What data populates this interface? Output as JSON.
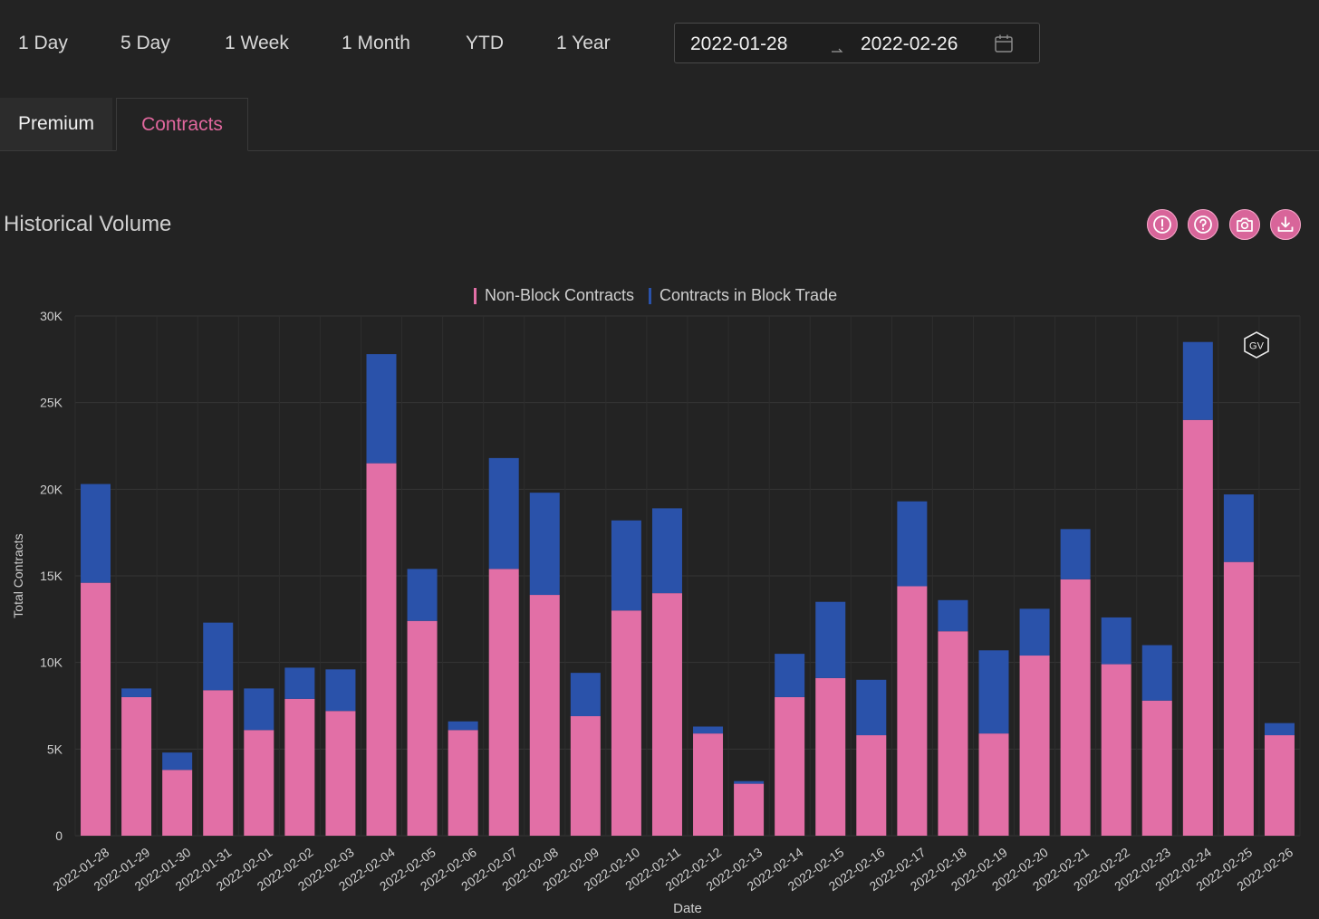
{
  "range_buttons": [
    "1 Day",
    "5 Day",
    "1 Week",
    "1 Month",
    "YTD",
    "1 Year"
  ],
  "date_range": {
    "start": "2022-01-28",
    "end": "2022-02-26"
  },
  "tabs": [
    {
      "label": "Premium",
      "active": false
    },
    {
      "label": "Contracts",
      "active": true
    }
  ],
  "section_title": "Historical Volume",
  "watermark_text": "GV",
  "colors": {
    "accent": "#e0679d",
    "non_block": "#e26fa6",
    "block": "#2a52aa",
    "background": "#232323"
  },
  "chart_data": {
    "type": "bar",
    "stacked": true,
    "categories": [
      "2022-01-28",
      "2022-01-29",
      "2022-01-30",
      "2022-01-31",
      "2022-02-01",
      "2022-02-02",
      "2022-02-03",
      "2022-02-04",
      "2022-02-05",
      "2022-02-06",
      "2022-02-07",
      "2022-02-08",
      "2022-02-09",
      "2022-02-10",
      "2022-02-11",
      "2022-02-12",
      "2022-02-13",
      "2022-02-14",
      "2022-02-15",
      "2022-02-16",
      "2022-02-17",
      "2022-02-18",
      "2022-02-19",
      "2022-02-20",
      "2022-02-21",
      "2022-02-22",
      "2022-02-23",
      "2022-02-24",
      "2022-02-25",
      "2022-02-26"
    ],
    "series": [
      {
        "name": "Non-Block Contracts",
        "color": "#e26fa6",
        "values": [
          14600,
          8000,
          3800,
          8400,
          6100,
          7900,
          7200,
          21500,
          12400,
          6100,
          15400,
          13900,
          6900,
          13000,
          14000,
          5900,
          3000,
          8000,
          9100,
          5800,
          14400,
          11800,
          5900,
          10400,
          14800,
          9900,
          7800,
          24000,
          15800,
          5800
        ]
      },
      {
        "name": "Contracts in Block Trade",
        "color": "#2a52aa",
        "values": [
          5700,
          500,
          1000,
          3900,
          2400,
          1800,
          2400,
          6300,
          3000,
          500,
          6400,
          5900,
          2500,
          5200,
          4900,
          400,
          150,
          2500,
          4400,
          3200,
          4900,
          1800,
          4800,
          2700,
          2900,
          2700,
          3200,
          4500,
          3900,
          700
        ]
      }
    ],
    "xlabel": "Date",
    "ylabel": "Total Contracts",
    "ylim": [
      0,
      30000
    ],
    "yticks": [
      0,
      5000,
      10000,
      15000,
      20000,
      25000,
      30000
    ],
    "ytick_labels": [
      "0",
      "5K",
      "10K",
      "15K",
      "20K",
      "25K",
      "30K"
    ],
    "grid": true,
    "legend_position": "top-center"
  }
}
